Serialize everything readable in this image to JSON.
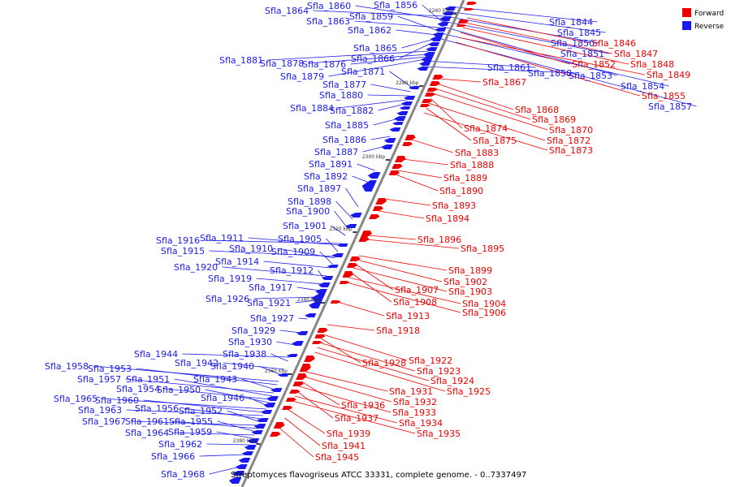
{
  "legend": [
    {
      "label": "Forward",
      "color": "#ee0000"
    },
    {
      "label": "Reverse",
      "color": "#1a1aee"
    }
  ],
  "caption": "Streptomyces flavogriseus ATCC 33331, complete genome. - 0..7337497",
  "kbp_markers": [
    "2260 kbp",
    "2280 kbp",
    "2300 kbp",
    "2320 kbp",
    "2340 kbp",
    "2360 kbp",
    "2380 kbp"
  ],
  "reverse_labels": [
    "Sfla_1864",
    "Sfla_1860",
    "Sfla_1856",
    "Sfla_1863",
    "Sfla_1859",
    "Sfla_1862",
    "Sfla_1865",
    "Sfla_1866",
    "Sfla_1881",
    "Sfla_1878",
    "Sfla_1876",
    "Sfla_1871",
    "Sfla_1879",
    "Sfla_1877",
    "Sfla_1880",
    "Sfla_1884",
    "Sfla_1882",
    "Sfla_1885",
    "Sfla_1886",
    "Sfla_1887",
    "Sfla_1891",
    "Sfla_1892",
    "Sfla_1897",
    "Sfla_1898",
    "Sfla_1900",
    "Sfla_1901",
    "Sfla_1916",
    "Sfla_1911",
    "Sfla_1905",
    "Sfla_1915",
    "Sfla_1910",
    "Sfla_1909",
    "Sfla_1914",
    "Sfla_1920",
    "Sfla_1912",
    "Sfla_1919",
    "Sfla_1917",
    "Sfla_1926",
    "Sfla_1921",
    "Sfla_1927",
    "Sfla_1929",
    "Sfla_1930",
    "Sfla_1944",
    "Sfla_1938",
    "Sfla_1942",
    "Sfla_1940",
    "Sfla_1958",
    "Sfla_1953",
    "Sfla_1943",
    "Sfla_1957",
    "Sfla_1951",
    "Sfla_1954",
    "Sfla_1950",
    "Sfla_1946",
    "Sfla_1965",
    "Sfla_1960",
    "Sfla_1963",
    "Sfla_1956",
    "Sfla_1952",
    "Sfla_1967",
    "Sfla_1961",
    "Sfla_1955",
    "Sfla_1964",
    "Sfla_1959",
    "Sfla_1962",
    "Sfla_1966",
    "Sfla_1968",
    "Sfla_1844",
    "Sfla_1845",
    "Sfla_1850",
    "Sfla_1851",
    "Sfla_1853",
    "Sfla_1861",
    "Sfla_1858",
    "Sfla_1854",
    "Sfla_1857"
  ],
  "forward_labels": [
    "Sfla_1846",
    "Sfla_1847",
    "Sfla_1848",
    "Sfla_1852",
    "Sfla_1849",
    "Sfla_1855",
    "Sfla_1867",
    "Sfla_1868",
    "Sfla_1869",
    "Sfla_1870",
    "Sfla_1874",
    "Sfla_1872",
    "Sfla_1875",
    "Sfla_1873",
    "Sfla_1883",
    "Sfla_1888",
    "Sfla_1889",
    "Sfla_1890",
    "Sfla_1893",
    "Sfla_1894",
    "Sfla_1896",
    "Sfla_1895",
    "Sfla_1899",
    "Sfla_1902",
    "Sfla_1907",
    "Sfla_1903",
    "Sfla_1908",
    "Sfla_1904",
    "Sfla_1906",
    "Sfla_1913",
    "Sfla_1918",
    "Sfla_1922",
    "Sfla_1928",
    "Sfla_1923",
    "Sfla_1924",
    "Sfla_1925",
    "Sfla_1931",
    "Sfla_1932",
    "Sfla_1936",
    "Sfla_1933",
    "Sfla_1937",
    "Sfla_1934",
    "Sfla_1935",
    "Sfla_1939",
    "Sfla_1941",
    "Sfla_1945"
  ]
}
